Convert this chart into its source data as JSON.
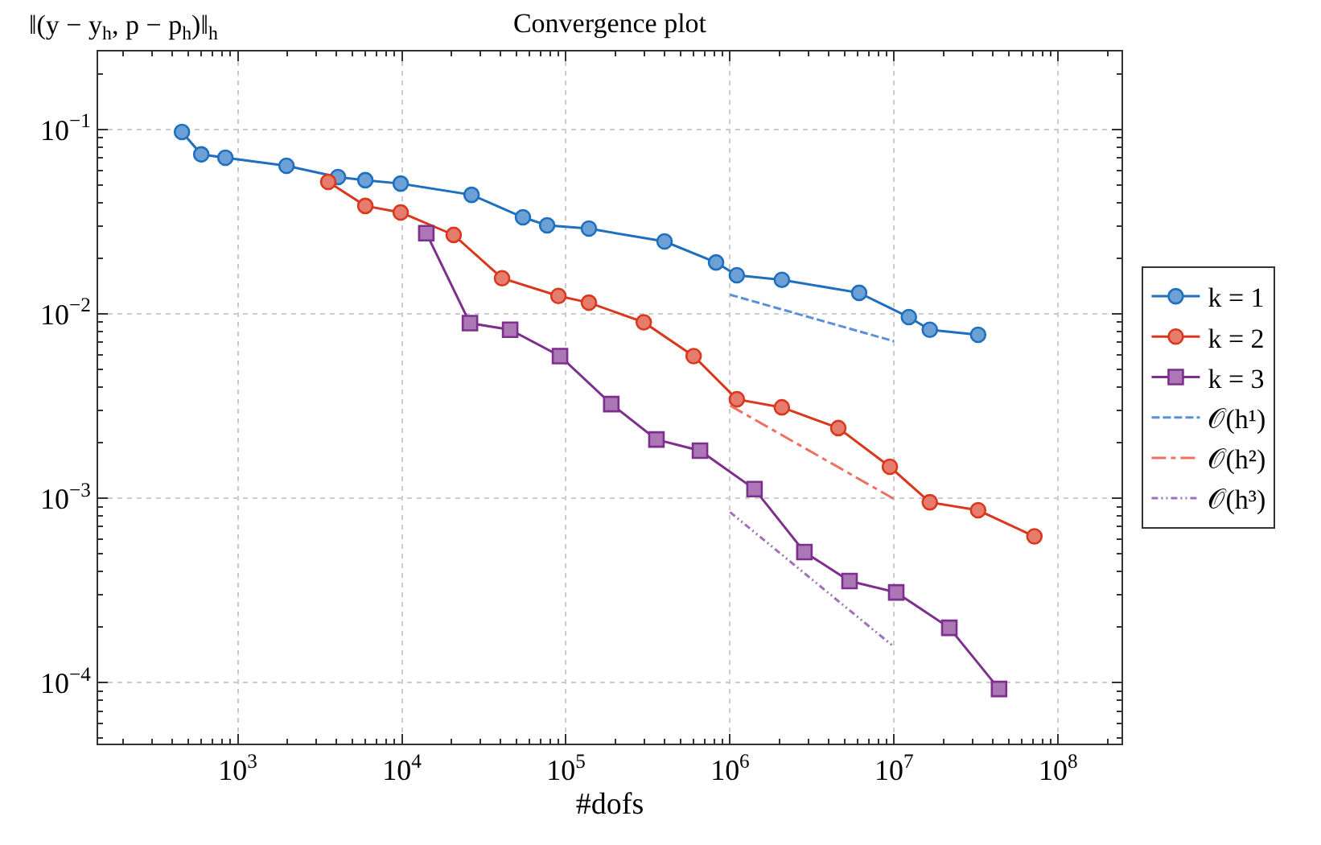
{
  "chart_data": {
    "type": "line",
    "title": "Convergence plot",
    "xlabel": "#dofs",
    "ylabel": "‖(y − y$_{h}$, p − p$_{h}$)‖$_{h}$",
    "log": "xy",
    "grid": true,
    "legend": "right",
    "xlim": [
      141,
      243000000
    ],
    "ylim": [
      4.66e-05,
      0.265
    ],
    "xticks": [
      {
        "value": 1000,
        "label": "10$^{3}$"
      },
      {
        "value": 10000,
        "label": "10$^{4}$"
      },
      {
        "value": 100000,
        "label": "10$^{5}$"
      },
      {
        "value": 1000000,
        "label": "10$^{6}$"
      },
      {
        "value": 10000000,
        "label": "10$^{7}$"
      },
      {
        "value": 100000000,
        "label": "10$^{8}$"
      }
    ],
    "yticks": [
      {
        "value": 0.0001,
        "label": "10$^{−4}$"
      },
      {
        "value": 0.001,
        "label": "10$^{−3}$"
      },
      {
        "value": 0.01,
        "label": "10$^{−2}$"
      },
      {
        "value": 0.1,
        "label": "10$^{−1}$"
      }
    ],
    "series": [
      {
        "name": "k = 1",
        "color": "#1f6fbf",
        "marker": "circle",
        "line_style": "solid",
        "x": [
          457,
          599,
          841,
          1982,
          4083,
          5990,
          9840,
          26600,
          54700,
          76800,
          138000,
          399000,
          822000,
          1100000,
          2070000,
          6120000,
          12300000,
          16500000,
          32500000
        ],
        "values": [
          0.097,
          0.0733,
          0.0703,
          0.0636,
          0.0552,
          0.0531,
          0.0509,
          0.0442,
          0.0334,
          0.0302,
          0.029,
          0.0247,
          0.019,
          0.0162,
          0.0153,
          0.013,
          0.0096,
          0.0082,
          0.0077
        ]
      },
      {
        "name": "k = 2",
        "color": "#d9381e",
        "marker": "circle",
        "line_style": "solid",
        "x": [
          3560,
          5990,
          9840,
          20700,
          40800,
          90000,
          138000,
          298000,
          600000,
          1100000,
          2070000,
          4570000,
          9420000,
          16500000,
          32500000,
          71600000
        ],
        "values": [
          0.052,
          0.0385,
          0.0355,
          0.0268,
          0.0156,
          0.0125,
          0.0115,
          0.009,
          0.0059,
          0.00344,
          0.00311,
          0.0024,
          0.00148,
          0.00095,
          0.00086,
          0.00062
        ]
      },
      {
        "name": "k = 3",
        "color": "#7e2f8e",
        "marker": "square",
        "line_style": "solid",
        "x": [
          14100,
          26000,
          45700,
          92000,
          189000,
          356000,
          656000,
          1410000,
          2840000,
          5350000,
          10300000,
          21700000,
          43600000
        ],
        "values": [
          0.0274,
          0.0089,
          0.0082,
          0.0059,
          0.00324,
          0.00208,
          0.00181,
          0.00112,
          0.00051,
          0.000355,
          0.000308,
          0.000198,
          9.22e-05
        ]
      },
      {
        "name": "𝒪(h¹)",
        "color": "#5b8fd6",
        "marker": "none",
        "line_style": "dashed",
        "x": [
          1000000,
          10000000
        ],
        "values": [
          0.0127,
          0.0071
        ]
      },
      {
        "name": "𝒪(h²)",
        "color": "#ee7060",
        "marker": "none",
        "line_style": "dashdot",
        "x": [
          1000000,
          10000000
        ],
        "values": [
          0.00318,
          0.00099
        ]
      },
      {
        "name": "𝒪(h³)",
        "color": "#a070b8",
        "marker": "none",
        "line_style": "dashdotdot",
        "x": [
          1000000,
          10000000
        ],
        "values": [
          0.00084,
          0.000156
        ]
      }
    ]
  }
}
